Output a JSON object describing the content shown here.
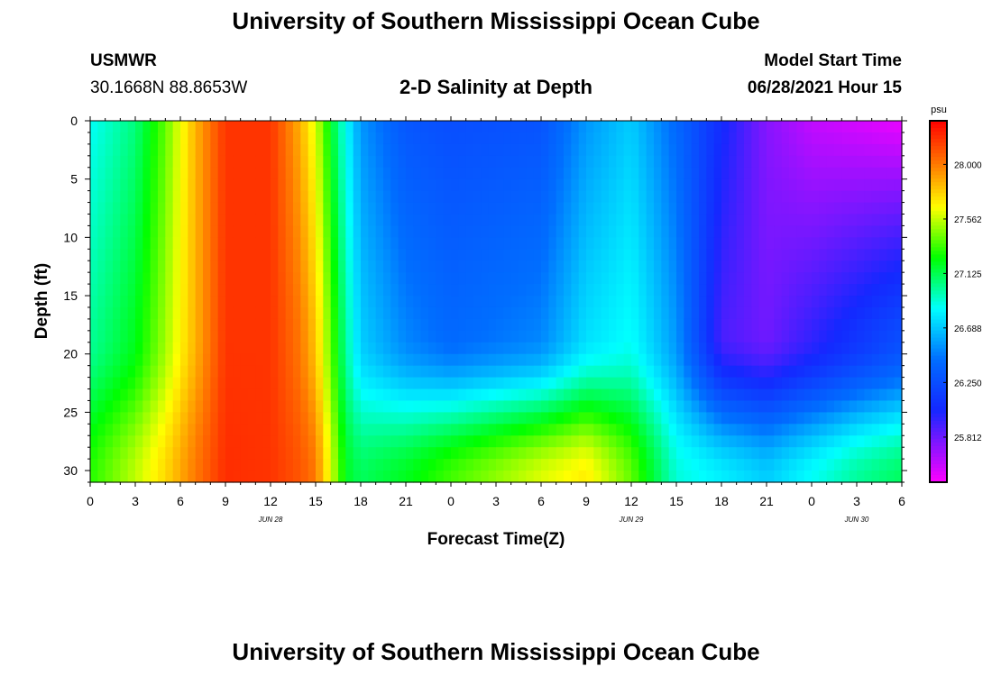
{
  "header": {
    "title": "University of Southern Mississippi Ocean Cube",
    "station_code": "USMWR",
    "coordinates": "30.1668N  88.8653W",
    "plot_title": "2-D Salinity at Depth",
    "model_start_label": "Model Start Time",
    "model_start_value": "06/28/2021 Hour 15"
  },
  "footer": {
    "title": "University of Southern Mississippi Ocean Cube"
  },
  "chart_data": {
    "type": "heatmap",
    "title": "2-D Salinity at Depth",
    "xlabel": "Forecast Time(Z)",
    "ylabel": "Depth (ft)",
    "x_tick_labels": [
      "0",
      "3",
      "6",
      "9",
      "12",
      "15",
      "18",
      "21",
      "0",
      "3",
      "6",
      "9",
      "12",
      "15",
      "18",
      "21",
      "0",
      "3",
      "6"
    ],
    "date_labels": [
      {
        "text": "JUN 28",
        "hour_index": 12
      },
      {
        "text": "JUN 29",
        "hour_index": 36
      },
      {
        "text": "JUN 30",
        "hour_index": 51
      }
    ],
    "x_range_hours": [
      0,
      54
    ],
    "y_tick_labels": [
      "0",
      "5",
      "10",
      "15",
      "20",
      "25",
      "30"
    ],
    "y_range_ft": [
      0,
      31
    ],
    "y_inverted": true,
    "colorbar": {
      "unit": "psu",
      "tick_labels": [
        "28.000",
        "27.562",
        "27.125",
        "26.688",
        "26.250",
        "25.812"
      ],
      "range": [
        25.45,
        28.35
      ]
    },
    "keyframes": [
      {
        "h": 0,
        "surface": 26.85,
        "deep": 27.0,
        "bottom": 27.3
      },
      {
        "h": 3,
        "surface": 27.05,
        "deep": 27.2,
        "bottom": 27.55
      },
      {
        "h": 5,
        "surface": 27.4,
        "deep": 27.5,
        "bottom": 27.75
      },
      {
        "h": 7,
        "surface": 27.85,
        "deep": 27.85,
        "bottom": 28.0
      },
      {
        "h": 9,
        "surface": 28.2,
        "deep": 28.2,
        "bottom": 28.22
      },
      {
        "h": 12,
        "surface": 28.2,
        "deep": 28.2,
        "bottom": 28.2
      },
      {
        "h": 14,
        "surface": 27.85,
        "deep": 28.0,
        "bottom": 28.1
      },
      {
        "h": 15,
        "surface": 27.6,
        "deep": 27.8,
        "bottom": 28.0
      },
      {
        "h": 16,
        "surface": 27.2,
        "deep": 27.4,
        "bottom": 27.6
      },
      {
        "h": 17,
        "surface": 26.85,
        "deep": 27.0,
        "bottom": 27.2
      },
      {
        "h": 18,
        "surface": 26.55,
        "deep": 26.7,
        "bottom": 27.1
      },
      {
        "h": 21,
        "surface": 26.3,
        "deep": 26.5,
        "bottom": 27.2
      },
      {
        "h": 24,
        "surface": 26.25,
        "deep": 26.4,
        "bottom": 27.35
      },
      {
        "h": 30,
        "surface": 26.28,
        "deep": 26.5,
        "bottom": 27.6
      },
      {
        "h": 33,
        "surface": 26.55,
        "deep": 26.75,
        "bottom": 27.7
      },
      {
        "h": 36,
        "surface": 26.7,
        "deep": 26.85,
        "bottom": 27.4
      },
      {
        "h": 39,
        "surface": 26.4,
        "deep": 26.55,
        "bottom": 26.9
      },
      {
        "h": 42,
        "surface": 26.05,
        "deep": 25.9,
        "bottom": 26.8
      },
      {
        "h": 45,
        "surface": 25.75,
        "deep": 25.8,
        "bottom": 26.7
      },
      {
        "h": 48,
        "surface": 25.6,
        "deep": 25.95,
        "bottom": 26.85
      },
      {
        "h": 51,
        "surface": 25.55,
        "deep": 26.1,
        "bottom": 27.0
      },
      {
        "h": 54,
        "surface": 25.5,
        "deep": 26.25,
        "bottom": 27.1
      }
    ]
  }
}
